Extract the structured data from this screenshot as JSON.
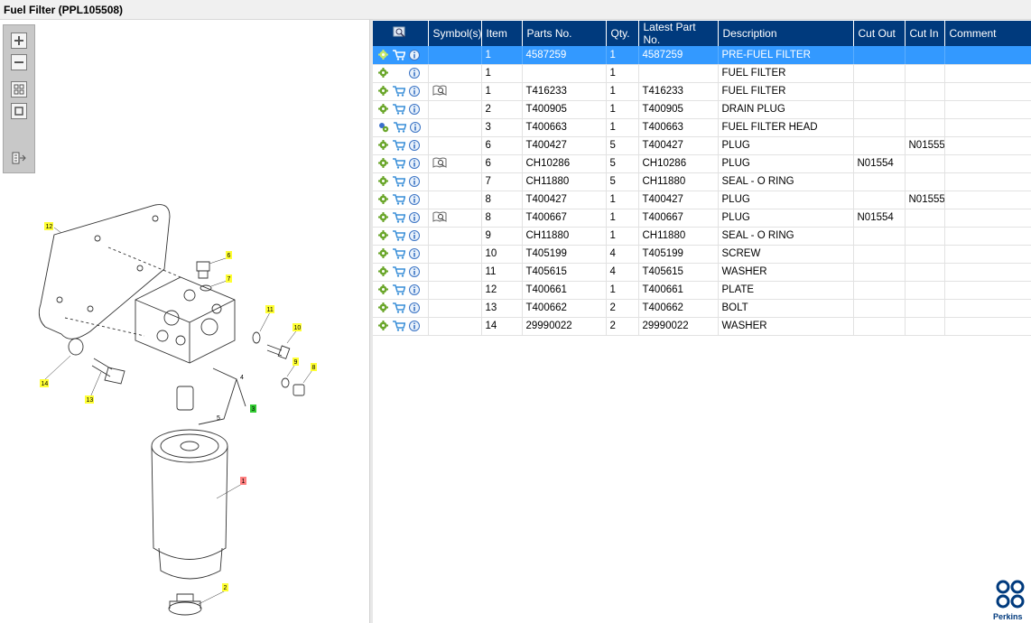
{
  "window": {
    "title": "Fuel Filter (PPL105508)"
  },
  "table": {
    "columns": [
      "",
      "Symbol(s)",
      "Item",
      "Parts No.",
      "Qty.",
      "Latest Part No.",
      "Description",
      "Cut Out",
      "Cut In",
      "Comment"
    ],
    "rows": [
      {
        "selected": true,
        "cart": true,
        "gear": "gear",
        "symbol": false,
        "item": "1",
        "part": "4587259",
        "qty": "1",
        "latest": "4587259",
        "desc": "PRE-FUEL FILTER",
        "cut_out": "",
        "cut_in": "",
        "comment": ""
      },
      {
        "selected": false,
        "cart": false,
        "gear": "gear",
        "symbol": false,
        "item": "1",
        "part": "",
        "qty": "1",
        "latest": "",
        "desc": "FUEL FILTER",
        "cut_out": "",
        "cut_in": "",
        "comment": ""
      },
      {
        "selected": false,
        "cart": true,
        "gear": "gear",
        "symbol": true,
        "item": "1",
        "part": "T416233",
        "qty": "1",
        "latest": "T416233",
        "desc": "FUEL FILTER",
        "cut_out": "",
        "cut_in": "",
        "comment": ""
      },
      {
        "selected": false,
        "cart": true,
        "gear": "gear",
        "symbol": false,
        "item": "2",
        "part": "T400905",
        "qty": "1",
        "latest": "T400905",
        "desc": "DRAIN PLUG",
        "cut_out": "",
        "cut_in": "",
        "comment": ""
      },
      {
        "selected": false,
        "cart": true,
        "gear": "gears",
        "symbol": false,
        "item": "3",
        "part": "T400663",
        "qty": "1",
        "latest": "T400663",
        "desc": "FUEL FILTER HEAD",
        "cut_out": "",
        "cut_in": "",
        "comment": ""
      },
      {
        "selected": false,
        "cart": true,
        "gear": "gear",
        "symbol": false,
        "item": "6",
        "part": "T400427",
        "qty": "5",
        "latest": "T400427",
        "desc": "PLUG",
        "cut_out": "",
        "cut_in": "N01555",
        "comment": ""
      },
      {
        "selected": false,
        "cart": true,
        "gear": "gear",
        "symbol": true,
        "item": "6",
        "part": "CH10286",
        "qty": "5",
        "latest": "CH10286",
        "desc": "PLUG",
        "cut_out": "N01554",
        "cut_in": "",
        "comment": ""
      },
      {
        "selected": false,
        "cart": true,
        "gear": "gear",
        "symbol": false,
        "item": "7",
        "part": "CH11880",
        "qty": "5",
        "latest": "CH11880",
        "desc": "SEAL - O RING",
        "cut_out": "",
        "cut_in": "",
        "comment": ""
      },
      {
        "selected": false,
        "cart": true,
        "gear": "gear",
        "symbol": false,
        "item": "8",
        "part": "T400427",
        "qty": "1",
        "latest": "T400427",
        "desc": "PLUG",
        "cut_out": "",
        "cut_in": "N01555",
        "comment": ""
      },
      {
        "selected": false,
        "cart": true,
        "gear": "gear",
        "symbol": true,
        "item": "8",
        "part": "T400667",
        "qty": "1",
        "latest": "T400667",
        "desc": "PLUG",
        "cut_out": "N01554",
        "cut_in": "",
        "comment": ""
      },
      {
        "selected": false,
        "cart": true,
        "gear": "gear",
        "symbol": false,
        "item": "9",
        "part": "CH11880",
        "qty": "1",
        "latest": "CH11880",
        "desc": "SEAL - O RING",
        "cut_out": "",
        "cut_in": "",
        "comment": ""
      },
      {
        "selected": false,
        "cart": true,
        "gear": "gear",
        "symbol": false,
        "item": "10",
        "part": "T405199",
        "qty": "4",
        "latest": "T405199",
        "desc": "SCREW",
        "cut_out": "",
        "cut_in": "",
        "comment": ""
      },
      {
        "selected": false,
        "cart": true,
        "gear": "gear",
        "symbol": false,
        "item": "11",
        "part": "T405615",
        "qty": "4",
        "latest": "T405615",
        "desc": "WASHER",
        "cut_out": "",
        "cut_in": "",
        "comment": ""
      },
      {
        "selected": false,
        "cart": true,
        "gear": "gear",
        "symbol": false,
        "item": "12",
        "part": "T400661",
        "qty": "1",
        "latest": "T400661",
        "desc": "PLATE",
        "cut_out": "",
        "cut_in": "",
        "comment": ""
      },
      {
        "selected": false,
        "cart": true,
        "gear": "gear",
        "symbol": false,
        "item": "13",
        "part": "T400662",
        "qty": "2",
        "latest": "T400662",
        "desc": "BOLT",
        "cut_out": "",
        "cut_in": "",
        "comment": ""
      },
      {
        "selected": false,
        "cart": true,
        "gear": "gear",
        "symbol": false,
        "item": "14",
        "part": "29990022",
        "qty": "2",
        "latest": "29990022",
        "desc": "WASHER",
        "cut_out": "",
        "cut_in": "",
        "comment": ""
      }
    ]
  },
  "drawing": {
    "callouts": [
      {
        "label": "12",
        "color": "#ffff33"
      },
      {
        "label": "6",
        "color": "#ffff33"
      },
      {
        "label": "7",
        "color": "#ffff33"
      },
      {
        "label": "11",
        "color": "#ffff33"
      },
      {
        "label": "10",
        "color": "#ffff33"
      },
      {
        "label": "9",
        "color": "#ffff33"
      },
      {
        "label": "8",
        "color": "#ffff33"
      },
      {
        "label": "14",
        "color": "#ffff33"
      },
      {
        "label": "13",
        "color": "#ffff33"
      },
      {
        "label": "3",
        "color": "#33cc33"
      },
      {
        "label": "1",
        "color": "#ff8080"
      },
      {
        "label": "2",
        "color": "#ffff33"
      }
    ],
    "plain_labels": [
      "4",
      "5"
    ]
  },
  "logo": {
    "text": "Perkins",
    "color": "#003a7d"
  },
  "icons": {
    "toolbox": [
      "zoom-in-icon",
      "zoom-out-icon",
      "fit-all-icon",
      "fit-window-icon",
      "export-icon"
    ]
  }
}
